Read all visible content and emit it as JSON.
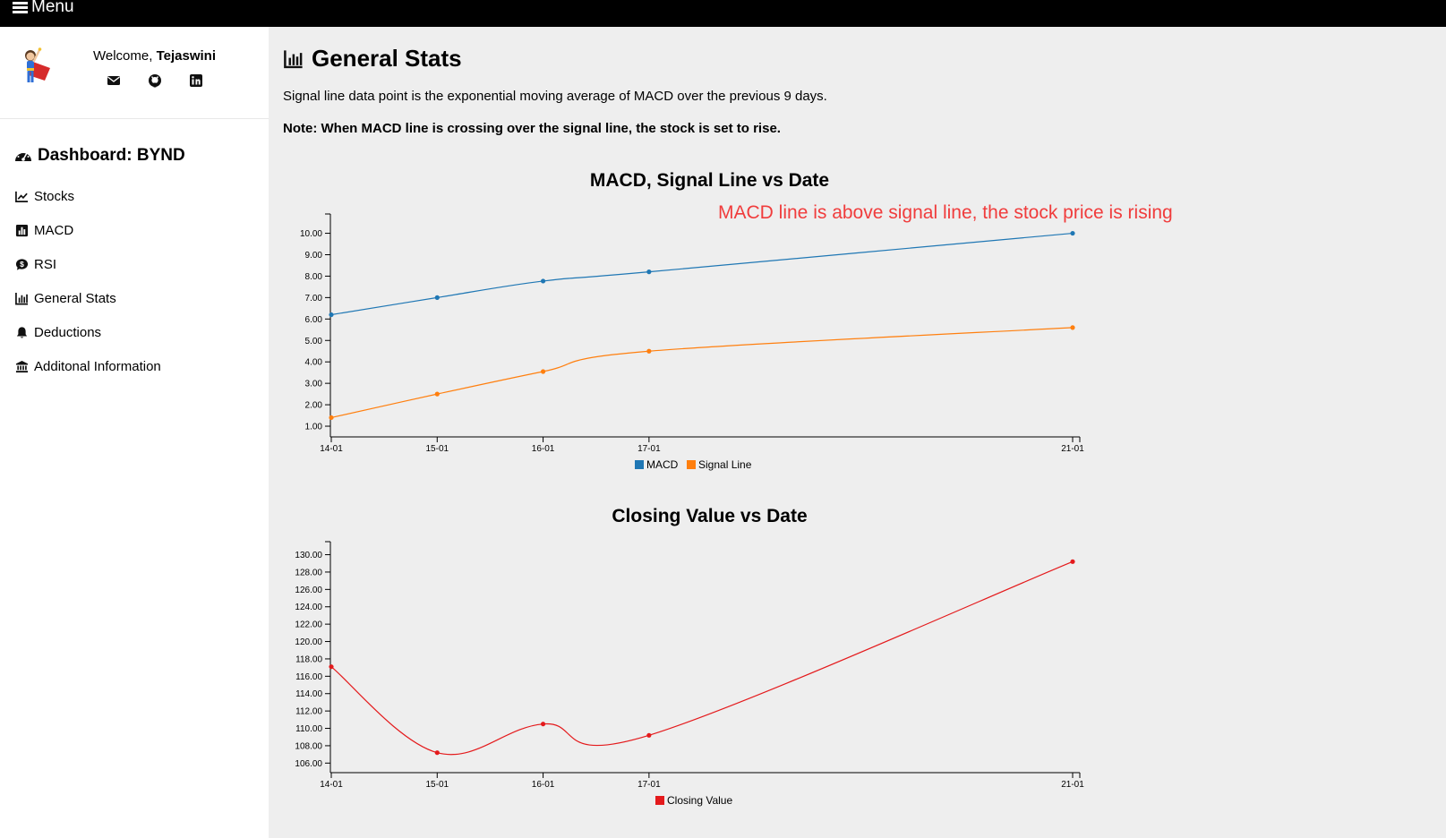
{
  "topbar": {
    "menu_label": "Menu"
  },
  "profile": {
    "welcome_prefix": "Welcome, ",
    "user_name": "Tejaswini"
  },
  "sidebar": {
    "dashboard_title": "Dashboard: BYND",
    "items": [
      {
        "label": "Stocks",
        "icon": "line-chart-icon"
      },
      {
        "label": "MACD",
        "icon": "bar-chart-icon"
      },
      {
        "label": "RSI",
        "icon": "dollar-bubble-icon"
      },
      {
        "label": "General Stats",
        "icon": "bar-chart-outline-icon"
      },
      {
        "label": "Deductions",
        "icon": "bell-icon"
      },
      {
        "label": "Additonal Information",
        "icon": "bank-icon"
      }
    ]
  },
  "main": {
    "title": "General Stats",
    "description": "Signal line data point is the exponential moving average of MACD over the previous 9 days.",
    "note": "Note: When MACD line is crossing over the signal line, the stock is set to rise."
  },
  "colors": {
    "macd": "#1f77b4",
    "signal": "#ff7f0e",
    "closing": "#e41a1c",
    "annotation": "#f03c3c"
  },
  "chart_data": [
    {
      "type": "line",
      "title": "MACD, Signal Line vs Date",
      "annotation": "MACD line is above signal line, the stock price is rising",
      "x": [
        "14-01",
        "15-01",
        "16-01",
        "17-01",
        "21-01"
      ],
      "x_days": [
        14,
        15,
        16,
        17,
        21
      ],
      "yticks": [
        "1.00",
        "2.00",
        "3.00",
        "4.00",
        "5.00",
        "6.00",
        "7.00",
        "8.00",
        "9.00",
        "10.00"
      ],
      "ylim": [
        0.5,
        10.9
      ],
      "series": [
        {
          "name": "MACD",
          "values": [
            6.2,
            7.0,
            7.77,
            8.2,
            10.0
          ]
        },
        {
          "name": "Signal Line",
          "values": [
            1.4,
            2.5,
            3.55,
            4.5,
            5.6
          ]
        }
      ],
      "legend": "bottom-center"
    },
    {
      "type": "line",
      "title": "Closing Value vs Date",
      "x": [
        "14-01",
        "15-01",
        "16-01",
        "17-01",
        "21-01"
      ],
      "x_days": [
        14,
        15,
        16,
        17,
        21
      ],
      "yticks": [
        "106.00",
        "108.00",
        "110.00",
        "112.00",
        "114.00",
        "116.00",
        "118.00",
        "120.00",
        "122.00",
        "124.00",
        "126.00",
        "128.00",
        "130.00"
      ],
      "ylim": [
        104.9,
        131.5
      ],
      "series": [
        {
          "name": "Closing Value",
          "values": [
            117.1,
            107.2,
            110.5,
            109.2,
            129.2
          ]
        }
      ],
      "legend": "bottom-center"
    }
  ]
}
